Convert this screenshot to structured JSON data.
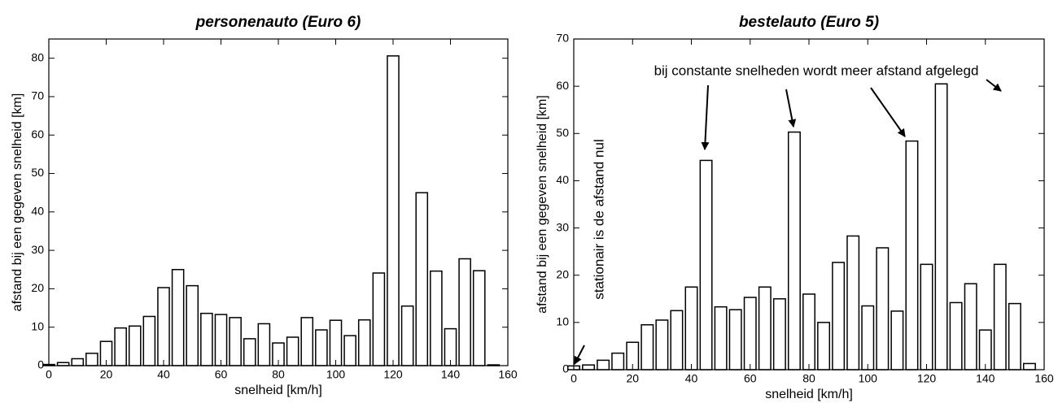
{
  "chart_data": [
    {
      "type": "bar",
      "title": "personenauto (Euro 6)",
      "x_label": "snelheid [km/h]",
      "y_label": "afstand bij een gegeven snelheid [km]",
      "x": [
        0,
        5,
        10,
        15,
        20,
        25,
        30,
        35,
        40,
        45,
        50,
        55,
        60,
        65,
        70,
        75,
        80,
        85,
        90,
        95,
        100,
        105,
        110,
        115,
        120,
        125,
        130,
        135,
        140,
        145,
        150,
        155
      ],
      "values": [
        0.3,
        0.8,
        1.8,
        3.2,
        6.3,
        9.8,
        10.3,
        12.8,
        20.3,
        25,
        20.8,
        13.6,
        13.3,
        12.5,
        7,
        10.9,
        5.9,
        7.4,
        12.5,
        9.3,
        11.8,
        7.8,
        11.9,
        24.1,
        80.6,
        15.5,
        45,
        24.6,
        9.6,
        27.8,
        24.7,
        0.2
      ],
      "color": "#ffffff",
      "xlim": [
        0,
        160
      ],
      "xticks": [
        0,
        20,
        40,
        60,
        80,
        100,
        120,
        140,
        160
      ],
      "ylim": [
        0,
        85
      ],
      "yticks": [
        0,
        10,
        20,
        30,
        40,
        50,
        60,
        70,
        80
      ]
    },
    {
      "type": "bar",
      "title": "bestelauto (Euro 5)",
      "x_label": "snelheid [km/h]",
      "y_label": "afstand bij een gegeven snelheid [km]",
      "annotations": [
        "bij constante snelheden wordt meer afstand afgelegd",
        "stationair is de afstand nul"
      ],
      "x": [
        0,
        5,
        10,
        15,
        20,
        25,
        30,
        35,
        40,
        45,
        50,
        55,
        60,
        65,
        70,
        75,
        80,
        85,
        90,
        95,
        100,
        105,
        110,
        115,
        120,
        125,
        130,
        135,
        140,
        145,
        150,
        155
      ],
      "values": [
        0.8,
        1,
        2,
        3.5,
        5.8,
        9.5,
        10.5,
        12.5,
        17.5,
        44.3,
        13.3,
        12.7,
        15.3,
        17.5,
        15,
        50.3,
        16,
        10,
        22.7,
        28.3,
        13.5,
        25.8,
        12.4,
        48.4,
        22.3,
        60.5,
        14.2,
        18.2,
        8.4,
        22.3,
        14,
        1.3
      ],
      "color": "#ffffff",
      "xlim": [
        0,
        160
      ],
      "xticks": [
        0,
        20,
        40,
        60,
        80,
        100,
        120,
        140,
        160
      ],
      "ylim": [
        0,
        70
      ],
      "yticks": [
        0,
        10,
        20,
        30,
        40,
        50,
        60,
        70
      ]
    }
  ]
}
